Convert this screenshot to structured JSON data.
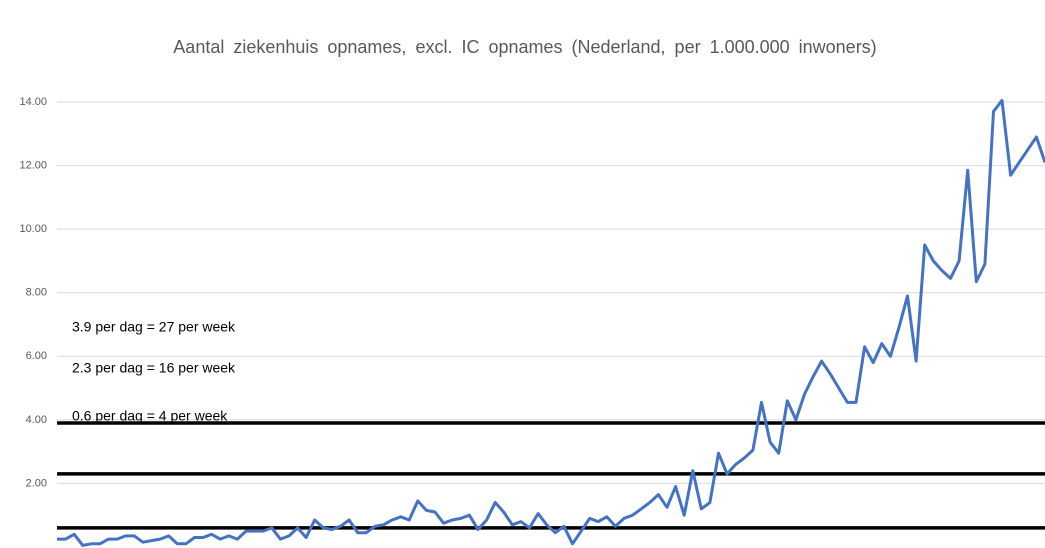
{
  "chart_data": {
    "type": "line",
    "title": "Aantal ziekenhuis opnames, excl. IC opnames (Nederland, per 1.000.000 inwoners)",
    "color": "#4472c4",
    "grid": true,
    "ylim": [
      0,
      14
    ],
    "yticks": [
      {
        "value": 2,
        "label": "2.00"
      },
      {
        "value": 4,
        "label": "4.00"
      },
      {
        "value": 6,
        "label": "6.00"
      },
      {
        "value": 8,
        "label": "8.00"
      },
      {
        "value": 10,
        "label": "10.00"
      },
      {
        "value": 12,
        "label": "12.00"
      },
      {
        "value": 14,
        "label": "14.00"
      }
    ],
    "values": [
      0.25,
      0.25,
      0.4,
      0.05,
      0.1,
      0.1,
      0.25,
      0.25,
      0.35,
      0.35,
      0.15,
      0.2,
      0.25,
      0.35,
      0.1,
      0.1,
      0.3,
      0.3,
      0.4,
      0.25,
      0.35,
      0.25,
      0.5,
      0.5,
      0.5,
      0.6,
      0.25,
      0.35,
      0.6,
      0.3,
      0.85,
      0.6,
      0.55,
      0.65,
      0.85,
      0.45,
      0.45,
      0.65,
      0.7,
      0.85,
      0.95,
      0.85,
      1.45,
      1.15,
      1.1,
      0.75,
      0.85,
      0.9,
      1.0,
      0.55,
      0.85,
      1.4,
      1.1,
      0.7,
      0.8,
      0.6,
      1.05,
      0.7,
      0.45,
      0.65,
      0.1,
      0.5,
      0.9,
      0.8,
      0.95,
      0.65,
      0.9,
      1.0,
      1.2,
      1.4,
      1.65,
      1.25,
      1.9,
      1.0,
      2.4,
      1.2,
      1.4,
      2.95,
      2.3,
      2.6,
      2.8,
      3.05,
      4.55,
      3.3,
      2.95,
      4.6,
      4.0,
      4.8,
      5.35,
      5.85,
      5.45,
      5.0,
      4.55,
      4.55,
      6.3,
      5.8,
      6.4,
      6.0,
      6.9,
      7.9,
      5.85,
      9.5,
      9.0,
      8.7,
      8.45,
      9.0,
      11.85,
      8.35,
      8.9,
      13.7,
      14.05,
      11.7,
      12.1,
      12.5,
      12.9,
      12.1
    ],
    "reference_lines": [
      {
        "value": 3.9,
        "label": "3.9 per dag = 27 per week"
      },
      {
        "value": 2.3,
        "label": "2.3 per dag = 16 per week"
      },
      {
        "value": 0.6,
        "label": "0.6 per dag = 4 per week"
      }
    ],
    "reference_color": "#000000"
  }
}
